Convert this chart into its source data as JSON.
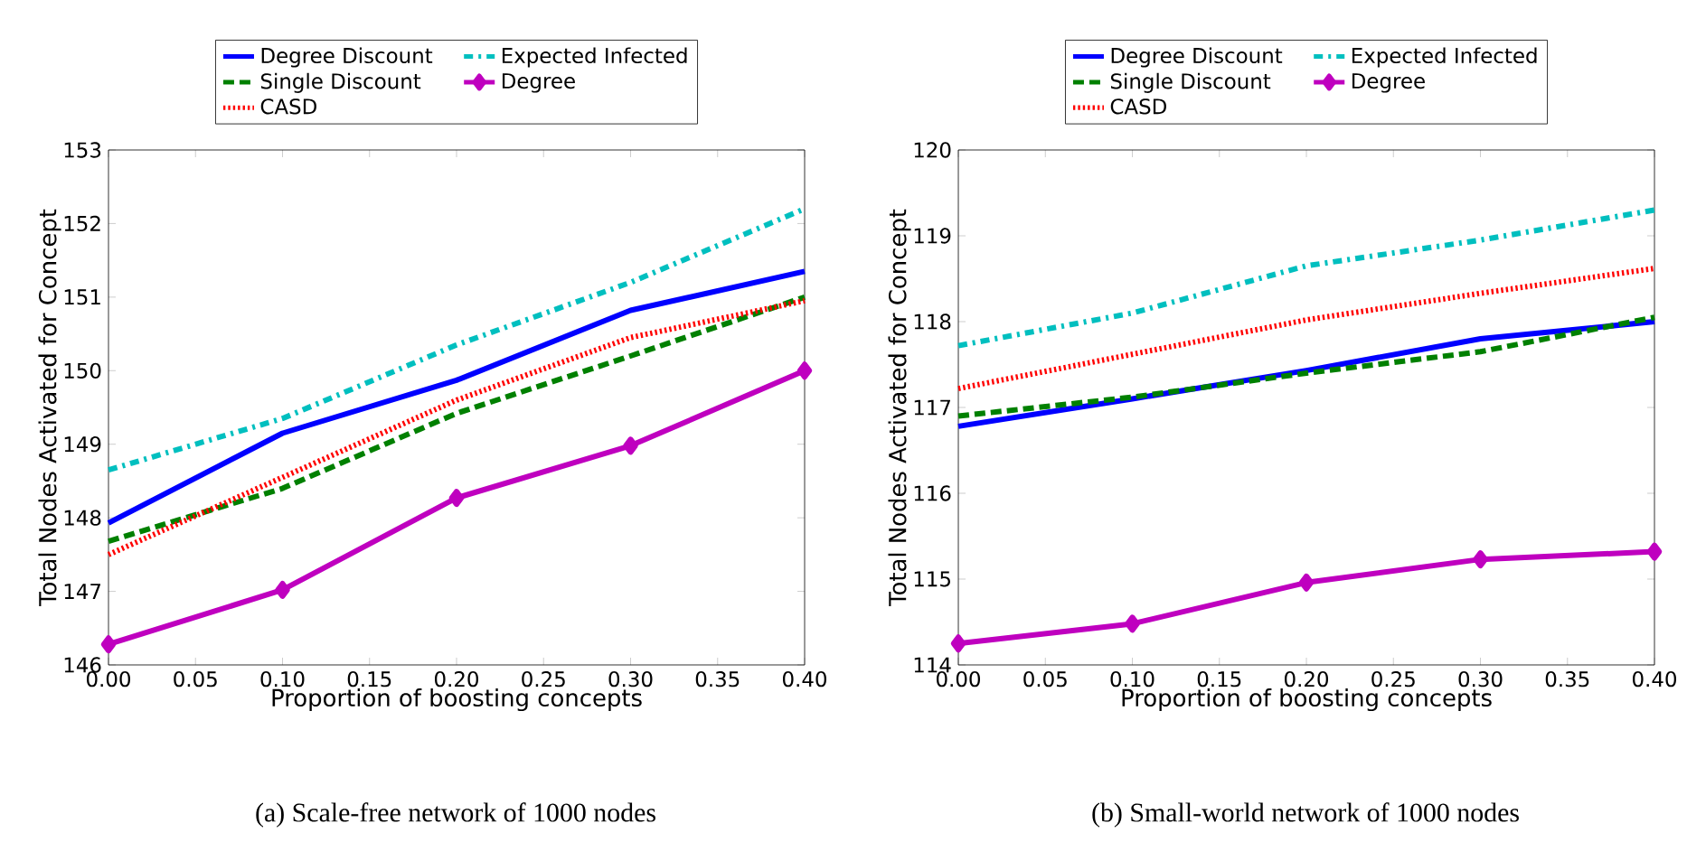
{
  "chart_data": [
    {
      "type": "line",
      "xlabel": "Proportion of boosting concepts",
      "ylabel": "Total Nodes Activated for Concept",
      "annotations": [
        "(a) Scale-free network of 1000 nodes"
      ],
      "x": [
        0,
        0.1,
        0.2,
        0.3,
        0.4
      ],
      "xlim": [
        0,
        0.4
      ],
      "ylim": [
        146,
        153
      ],
      "xticks": [
        {
          "value": 0,
          "label": "0.00"
        },
        {
          "value": 0.05,
          "label": "0.05"
        },
        {
          "value": 0.1,
          "label": "0.10"
        },
        {
          "value": 0.15,
          "label": "0.15"
        },
        {
          "value": 0.2,
          "label": "0.20"
        },
        {
          "value": 0.25,
          "label": "0.25"
        },
        {
          "value": 0.3,
          "label": "0.30"
        },
        {
          "value": 0.35,
          "label": "0.35"
        },
        {
          "value": 0.4,
          "label": "0.40"
        }
      ],
      "yticks": [
        146,
        147,
        148,
        149,
        150,
        151,
        152,
        153
      ],
      "legend": "top",
      "grid": false,
      "series": [
        {
          "name": "Degree Discount",
          "color": "#0000ff",
          "line_style": "solid",
          "values": [
            147.93,
            149.15,
            149.87,
            150.82,
            151.35
          ]
        },
        {
          "name": "Single Discount",
          "color": "#008000",
          "line_style": "dashed",
          "values": [
            147.68,
            148.4,
            149.42,
            150.2,
            151.0
          ]
        },
        {
          "name": "CASD",
          "color": "#ff0000",
          "line_style": "dotted",
          "values": [
            147.5,
            148.55,
            149.6,
            150.45,
            150.95
          ]
        },
        {
          "name": "Expected Infected",
          "color": "#00bfbf",
          "line_style": "dashdot",
          "values": [
            148.65,
            149.35,
            150.35,
            151.2,
            152.2
          ]
        },
        {
          "name": "Degree",
          "color": "#bf00bf",
          "line_style": "solid",
          "marker": "diamond",
          "values": [
            146.28,
            147.02,
            148.27,
            148.98,
            150.0
          ]
        }
      ]
    },
    {
      "type": "line",
      "xlabel": "Proportion of boosting concepts",
      "ylabel": "Total Nodes Activated for Concept",
      "annotations": [
        "(b) Small-world network of 1000 nodes"
      ],
      "x": [
        0,
        0.1,
        0.2,
        0.3,
        0.4
      ],
      "xlim": [
        0,
        0.4
      ],
      "ylim": [
        114,
        120
      ],
      "xticks": [
        {
          "value": 0,
          "label": "0.00"
        },
        {
          "value": 0.05,
          "label": "0.05"
        },
        {
          "value": 0.1,
          "label": "0.10"
        },
        {
          "value": 0.15,
          "label": "0.15"
        },
        {
          "value": 0.2,
          "label": "0.20"
        },
        {
          "value": 0.25,
          "label": "0.25"
        },
        {
          "value": 0.3,
          "label": "0.30"
        },
        {
          "value": 0.35,
          "label": "0.35"
        },
        {
          "value": 0.4,
          "label": "0.40"
        }
      ],
      "yticks": [
        114,
        115,
        116,
        117,
        118,
        119,
        120
      ],
      "legend": "top",
      "grid": false,
      "series": [
        {
          "name": "Degree Discount",
          "color": "#0000ff",
          "line_style": "solid",
          "values": [
            116.78,
            117.1,
            117.43,
            117.8,
            118.0
          ]
        },
        {
          "name": "Single Discount",
          "color": "#008000",
          "line_style": "dashed",
          "values": [
            116.9,
            117.12,
            117.4,
            117.65,
            118.05
          ]
        },
        {
          "name": "CASD",
          "color": "#ff0000",
          "line_style": "dotted",
          "values": [
            117.22,
            117.62,
            118.02,
            118.33,
            118.62
          ]
        },
        {
          "name": "Expected Infected",
          "color": "#00bfbf",
          "line_style": "dashdot",
          "values": [
            117.72,
            118.1,
            118.65,
            118.95,
            119.3
          ]
        },
        {
          "name": "Degree",
          "color": "#bf00bf",
          "line_style": "solid",
          "marker": "diamond",
          "values": [
            114.25,
            114.48,
            114.96,
            115.23,
            115.32
          ]
        }
      ]
    }
  ]
}
